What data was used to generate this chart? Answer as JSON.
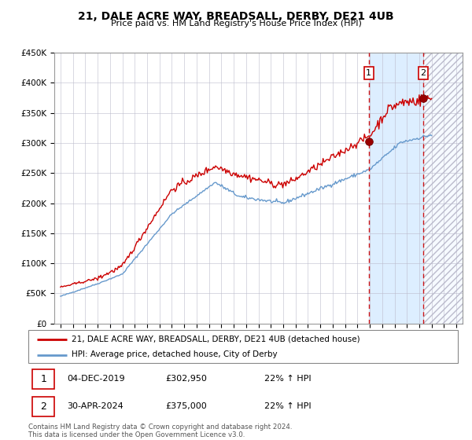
{
  "title": "21, DALE ACRE WAY, BREADSALL, DERBY, DE21 4UB",
  "subtitle": "Price paid vs. HM Land Registry's House Price Index (HPI)",
  "legend_line1": "21, DALE ACRE WAY, BREADSALL, DERBY, DE21 4UB (detached house)",
  "legend_line2": "HPI: Average price, detached house, City of Derby",
  "event1_label": "1",
  "event1_date": "04-DEC-2019",
  "event1_price": "£302,950",
  "event1_hpi": "22% ↑ HPI",
  "event1_year": 2019.92,
  "event1_value": 302950,
  "event2_label": "2",
  "event2_date": "30-APR-2024",
  "event2_price": "£375,000",
  "event2_hpi": "22% ↑ HPI",
  "event2_year": 2024.33,
  "event2_value": 375000,
  "red_color": "#cc0000",
  "blue_color": "#6699cc",
  "background_color": "#ffffff",
  "grid_color": "#bbbbcc",
  "shade_color": "#ddeeff",
  "ylim_max": 450000,
  "xlim_start": 1994.5,
  "xlim_end": 2027.5,
  "footer": "Contains HM Land Registry data © Crown copyright and database right 2024.\nThis data is licensed under the Open Government Licence v3.0."
}
